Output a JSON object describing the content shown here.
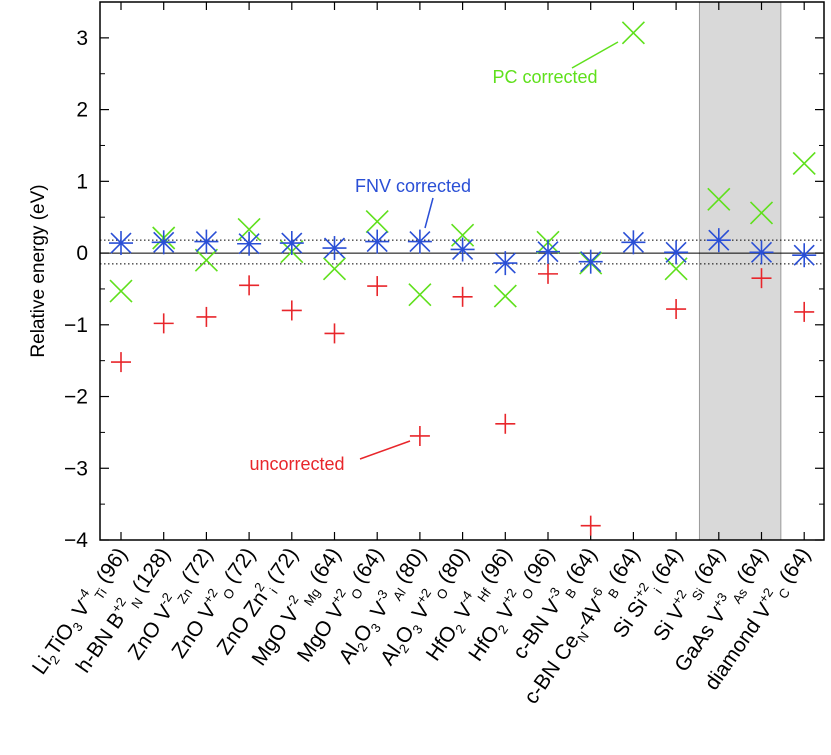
{
  "chart_data": {
    "type": "scatter",
    "ylabel": "Relative energy (eV)",
    "ylim": [
      -4,
      3.5
    ],
    "yticks": [
      "-4",
      "-3",
      "-2",
      "-1",
      "0",
      "1",
      "2",
      "3"
    ],
    "reference_band": [
      -0.15,
      0.18
    ],
    "highlighted_categories": [
      14,
      15
    ],
    "categories": [
      {
        "label": "Li2TiO3 V_Ti^-4 (96)",
        "parts": [
          [
            "Li",
            ""
          ],
          [
            "2",
            "sub"
          ],
          [
            "TiO",
            ""
          ],
          [
            "3",
            "sub"
          ],
          [
            " V",
            ""
          ],
          [
            "-4",
            "sup"
          ],
          [
            "Ti",
            "sub"
          ],
          [
            " (96)",
            ""
          ]
        ]
      },
      {
        "label": "h-BN B_N^+2 (128)",
        "parts": [
          [
            "h-BN B",
            ""
          ],
          [
            "+2",
            "sup"
          ],
          [
            "N",
            "sub"
          ],
          [
            " (128)",
            ""
          ]
        ]
      },
      {
        "label": "ZnO V_Zn^-2 (72)",
        "parts": [
          [
            "ZnO V",
            ""
          ],
          [
            "-2",
            "sup"
          ],
          [
            "Zn",
            "sub"
          ],
          [
            " (72)",
            ""
          ]
        ]
      },
      {
        "label": "ZnO V_O^+2 (72)",
        "parts": [
          [
            "ZnO V",
            ""
          ],
          [
            "+2",
            "sup"
          ],
          [
            "O",
            "sub"
          ],
          [
            " (72)",
            ""
          ]
        ]
      },
      {
        "label": "ZnO Zn_i^2 (72)",
        "parts": [
          [
            "ZnO Zn",
            ""
          ],
          [
            "2",
            "sup"
          ],
          [
            "i",
            "sub"
          ],
          [
            " (72)",
            ""
          ]
        ]
      },
      {
        "label": "MgO V_Mg^-2 (64)",
        "parts": [
          [
            "MgO V",
            ""
          ],
          [
            "-2",
            "sup"
          ],
          [
            "Mg",
            "sub"
          ],
          [
            " (64)",
            ""
          ]
        ]
      },
      {
        "label": "MgO V_O^+2 (64)",
        "parts": [
          [
            "MgO V",
            ""
          ],
          [
            "+2",
            "sup"
          ],
          [
            "O",
            "sub"
          ],
          [
            " (64)",
            ""
          ]
        ]
      },
      {
        "label": "Al2O3 V_Al^-3 (80)",
        "parts": [
          [
            "Al",
            ""
          ],
          [
            "2",
            "sub"
          ],
          [
            "O",
            ""
          ],
          [
            "3",
            "sub"
          ],
          [
            " V",
            ""
          ],
          [
            "-3",
            "sup"
          ],
          [
            "Al",
            "sub"
          ],
          [
            " (80)",
            ""
          ]
        ]
      },
      {
        "label": "Al2O3 V_O^+2 (80)",
        "parts": [
          [
            "Al",
            ""
          ],
          [
            "2",
            "sub"
          ],
          [
            "O",
            ""
          ],
          [
            "3",
            "sub"
          ],
          [
            " V",
            ""
          ],
          [
            "+2",
            "sup"
          ],
          [
            "O",
            "sub"
          ],
          [
            " (80)",
            ""
          ]
        ]
      },
      {
        "label": "HfO2 V_Hf^-4 (96)",
        "parts": [
          [
            "HfO",
            ""
          ],
          [
            "2",
            "sub"
          ],
          [
            " V",
            ""
          ],
          [
            "-4",
            "sup"
          ],
          [
            "Hf",
            "sub"
          ],
          [
            " (96)",
            ""
          ]
        ]
      },
      {
        "label": "HfO2 V_O^+2 (96)",
        "parts": [
          [
            "HfO",
            ""
          ],
          [
            "2",
            "sub"
          ],
          [
            " V",
            ""
          ],
          [
            "+2",
            "sup"
          ],
          [
            "O",
            "sub"
          ],
          [
            " (96)",
            ""
          ]
        ]
      },
      {
        "label": "c-BN V_B^-3 (64)",
        "parts": [
          [
            "c-BN V",
            ""
          ],
          [
            "-3",
            "sup"
          ],
          [
            "B",
            "sub"
          ],
          [
            " (64)",
            ""
          ]
        ]
      },
      {
        "label": "c-BN Ce_N-4V_B^-6 (64)",
        "parts": [
          [
            "c-BN Ce",
            ""
          ],
          [
            "N",
            "sub"
          ],
          [
            "-4V",
            ""
          ],
          [
            "-6",
            "sup"
          ],
          [
            "B",
            "sub"
          ],
          [
            " (64)",
            ""
          ]
        ]
      },
      {
        "label": "Si Si_i^+2 (64)",
        "parts": [
          [
            "Si Si",
            ""
          ],
          [
            "+2",
            "sup"
          ],
          [
            "i",
            "sub"
          ],
          [
            " (64)",
            ""
          ]
        ]
      },
      {
        "label": "Si V_Si^+2 (64)",
        "parts": [
          [
            "Si V",
            ""
          ],
          [
            "+2",
            "sup"
          ],
          [
            "Si",
            "sub"
          ],
          [
            " (64)",
            ""
          ]
        ]
      },
      {
        "label": "GaAs V_As^+3 (64)",
        "parts": [
          [
            "GaAs V",
            ""
          ],
          [
            "+3",
            "sup"
          ],
          [
            "As",
            "sub"
          ],
          [
            " (64)",
            ""
          ]
        ]
      },
      {
        "label": "diamond V_C^+2 (64)",
        "parts": [
          [
            "diamond V",
            ""
          ],
          [
            "+2",
            "sup"
          ],
          [
            "C",
            "sub"
          ],
          [
            " (64)",
            ""
          ]
        ]
      }
    ],
    "series": [
      {
        "name": "uncorrected",
        "marker": "plus",
        "color": "#e8262b",
        "values": [
          -1.52,
          -0.98,
          -0.89,
          -0.45,
          -0.8,
          -1.12,
          -0.46,
          -2.55,
          -0.61,
          -2.38,
          -0.29,
          -3.8,
          null,
          -0.78,
          null,
          -0.35,
          -0.82
        ]
      },
      {
        "name": "PC corrected",
        "marker": "x",
        "color": "#5fe01c",
        "values": [
          -0.53,
          0.21,
          -0.1,
          0.33,
          0.02,
          -0.22,
          0.44,
          -0.58,
          0.25,
          -0.6,
          0.15,
          -0.14,
          3.07,
          -0.22,
          0.75,
          0.56,
          1.25
        ]
      },
      {
        "name": "FNV corrected",
        "marker": "star",
        "color": "#2a4fd6",
        "values": [
          0.14,
          0.15,
          0.16,
          0.13,
          0.14,
          0.07,
          0.16,
          0.16,
          0.05,
          -0.14,
          0.02,
          -0.12,
          0.15,
          0.01,
          0.18,
          0.01,
          -0.03
        ]
      }
    ],
    "annotations": [
      {
        "text": "PC corrected",
        "series": "PC corrected",
        "target_index": 12
      },
      {
        "text": "FNV corrected",
        "series": "FNV corrected",
        "target_index": 7
      },
      {
        "text": "uncorrected",
        "series": "uncorrected",
        "target_index": 7
      }
    ]
  }
}
